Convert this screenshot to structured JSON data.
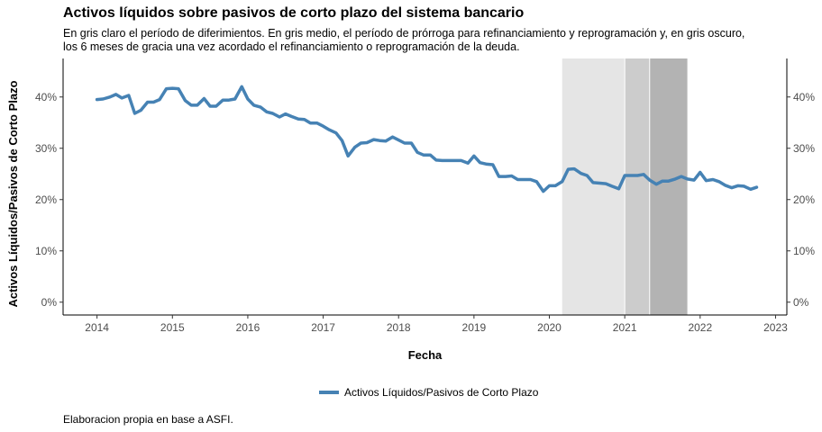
{
  "chart_data": {
    "type": "line",
    "title": "Activos líquidos sobre pasivos de corto plazo del sistema bancario",
    "subtitle_line1": "En gris claro el período de diferimientos. En gris medio, el período de prórroga para refinanciamiento y reprogramación y, en gris oscuro,",
    "subtitle_line2": "los 6 meses de gracia una vez acordado el refinanciamiento o reprogramación de la deuda.",
    "xlabel": "Fecha",
    "ylabel": "Activos Líquidos/Pasivos de Corto Plazo",
    "caption": "Elaboracion propia en base a ASFI.",
    "xlim": [
      2013.55,
      2023.15
    ],
    "ylim": [
      -2.5,
      47.5
    ],
    "x_ticks": [
      2014,
      2015,
      2016,
      2017,
      2018,
      2019,
      2020,
      2021,
      2022,
      2023
    ],
    "y_ticks": [
      0,
      10,
      20,
      30,
      40
    ],
    "y_tick_labels": [
      "0%",
      "10%",
      "20%",
      "30%",
      "40%"
    ],
    "legend_position": "bottom",
    "grid": false,
    "shaded_periods": [
      {
        "start": 2020.17,
        "end": 2021.0,
        "color": "#e5e5e5"
      },
      {
        "start": 2021.0,
        "end": 2021.33,
        "color": "#cccccc"
      },
      {
        "start": 2021.33,
        "end": 2021.83,
        "color": "#b3b3b3"
      }
    ],
    "series": [
      {
        "name": "Activos Líquidos/Pasivos de Corto Plazo",
        "color": "#4682b4",
        "points": [
          [
            2014.0,
            39.5
          ],
          [
            2014.08,
            39.6
          ],
          [
            2014.17,
            40.0
          ],
          [
            2014.25,
            40.5
          ],
          [
            2014.33,
            39.8
          ],
          [
            2014.42,
            40.3
          ],
          [
            2014.5,
            36.8
          ],
          [
            2014.58,
            37.4
          ],
          [
            2014.67,
            39.0
          ],
          [
            2014.75,
            39.0
          ],
          [
            2014.83,
            39.5
          ],
          [
            2014.92,
            41.6
          ],
          [
            2015.0,
            41.7
          ],
          [
            2015.08,
            41.6
          ],
          [
            2015.17,
            39.3
          ],
          [
            2015.25,
            38.4
          ],
          [
            2015.33,
            38.4
          ],
          [
            2015.42,
            39.7
          ],
          [
            2015.5,
            38.2
          ],
          [
            2015.58,
            38.2
          ],
          [
            2015.67,
            39.4
          ],
          [
            2015.75,
            39.4
          ],
          [
            2015.83,
            39.6
          ],
          [
            2015.92,
            42.0
          ],
          [
            2016.0,
            39.6
          ],
          [
            2016.08,
            38.4
          ],
          [
            2016.17,
            38.0
          ],
          [
            2016.25,
            37.1
          ],
          [
            2016.33,
            36.8
          ],
          [
            2016.42,
            36.1
          ],
          [
            2016.5,
            36.7
          ],
          [
            2016.58,
            36.2
          ],
          [
            2016.67,
            35.7
          ],
          [
            2016.75,
            35.6
          ],
          [
            2016.83,
            34.9
          ],
          [
            2016.92,
            34.9
          ],
          [
            2017.0,
            34.3
          ],
          [
            2017.08,
            33.6
          ],
          [
            2017.17,
            33.0
          ],
          [
            2017.25,
            31.5
          ],
          [
            2017.33,
            28.5
          ],
          [
            2017.42,
            30.2
          ],
          [
            2017.5,
            31.0
          ],
          [
            2017.58,
            31.1
          ],
          [
            2017.67,
            31.7
          ],
          [
            2017.75,
            31.5
          ],
          [
            2017.83,
            31.4
          ],
          [
            2017.92,
            32.2
          ],
          [
            2018.0,
            31.6
          ],
          [
            2018.08,
            31.0
          ],
          [
            2018.17,
            31.0
          ],
          [
            2018.25,
            29.2
          ],
          [
            2018.33,
            28.7
          ],
          [
            2018.42,
            28.7
          ],
          [
            2018.5,
            27.7
          ],
          [
            2018.58,
            27.6
          ],
          [
            2018.67,
            27.6
          ],
          [
            2018.75,
            27.6
          ],
          [
            2018.83,
            27.6
          ],
          [
            2018.92,
            27.1
          ],
          [
            2019.0,
            28.5
          ],
          [
            2019.08,
            27.2
          ],
          [
            2019.17,
            26.9
          ],
          [
            2019.25,
            26.8
          ],
          [
            2019.33,
            24.5
          ],
          [
            2019.42,
            24.5
          ],
          [
            2019.5,
            24.6
          ],
          [
            2019.58,
            23.9
          ],
          [
            2019.67,
            23.9
          ],
          [
            2019.75,
            23.9
          ],
          [
            2019.83,
            23.5
          ],
          [
            2019.92,
            21.6
          ],
          [
            2020.0,
            22.7
          ],
          [
            2020.08,
            22.7
          ],
          [
            2020.17,
            23.5
          ],
          [
            2020.25,
            25.9
          ],
          [
            2020.33,
            26.0
          ],
          [
            2020.42,
            25.1
          ],
          [
            2020.5,
            24.7
          ],
          [
            2020.58,
            23.3
          ],
          [
            2020.67,
            23.2
          ],
          [
            2020.75,
            23.1
          ],
          [
            2020.83,
            22.6
          ],
          [
            2020.92,
            22.1
          ],
          [
            2021.0,
            24.7
          ],
          [
            2021.08,
            24.7
          ],
          [
            2021.17,
            24.7
          ],
          [
            2021.25,
            24.9
          ],
          [
            2021.33,
            23.8
          ],
          [
            2021.42,
            23.0
          ],
          [
            2021.5,
            23.6
          ],
          [
            2021.58,
            23.6
          ],
          [
            2021.67,
            24.0
          ],
          [
            2021.75,
            24.5
          ],
          [
            2021.83,
            24.0
          ],
          [
            2021.92,
            23.8
          ],
          [
            2022.0,
            25.3
          ],
          [
            2022.08,
            23.7
          ],
          [
            2022.17,
            23.9
          ],
          [
            2022.25,
            23.5
          ],
          [
            2022.33,
            22.8
          ],
          [
            2022.42,
            22.3
          ],
          [
            2022.5,
            22.7
          ],
          [
            2022.58,
            22.6
          ],
          [
            2022.67,
            22.0
          ],
          [
            2022.75,
            22.4
          ]
        ]
      }
    ]
  }
}
